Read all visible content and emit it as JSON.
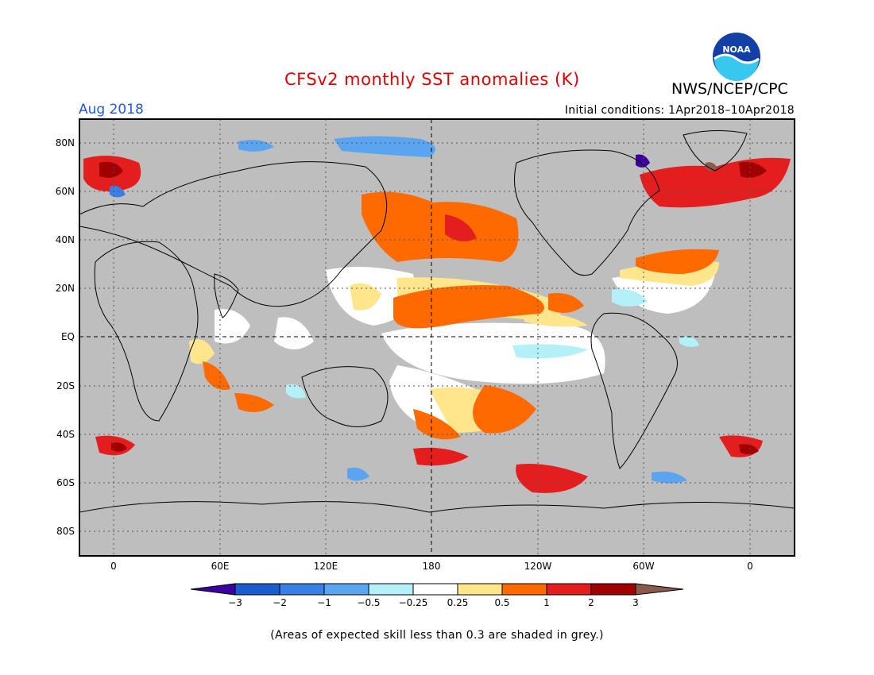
{
  "header": {
    "title": "CFSv2 monthly SST anomalies (K)",
    "agency": "NWS/NCEP/CPC",
    "logo_text": "NOAA",
    "valid_month": "Aug 2018",
    "initial_conditions": "Initial conditions: 1Apr2018–10Apr2018"
  },
  "colors": {
    "title": "#e00000",
    "month": "#1e5ad8",
    "land_grey": "#bebebe",
    "ocean_white": "#ffffff"
  },
  "map": {
    "lat_labels": [
      "80N",
      "60N",
      "40N",
      "20N",
      "EQ",
      "20S",
      "40S",
      "60S",
      "80S"
    ],
    "lon_labels": [
      "0",
      "60E",
      "120E",
      "180",
      "120W",
      "60W",
      "0"
    ]
  },
  "legend": {
    "tick_labels": [
      "−3",
      "−2",
      "−1",
      "−0.5",
      "−0.25",
      "0.25",
      "0.5",
      "1",
      "2",
      "3"
    ],
    "bins": [
      {
        "color": "#1a5ccd"
      },
      {
        "color": "#3880e6"
      },
      {
        "color": "#5aa4f0"
      },
      {
        "color": "#b4f0f8"
      },
      {
        "color": "#ffffff"
      },
      {
        "color": "#ffe68c"
      },
      {
        "color": "#ff6a00"
      },
      {
        "color": "#e41e1e"
      },
      {
        "color": "#a00000"
      }
    ],
    "under_color": "#3c00a0",
    "over_color": "#8a5a4a"
  },
  "footnote": "(Areas of expected skill less than 0.3 are shaded in grey.)"
}
